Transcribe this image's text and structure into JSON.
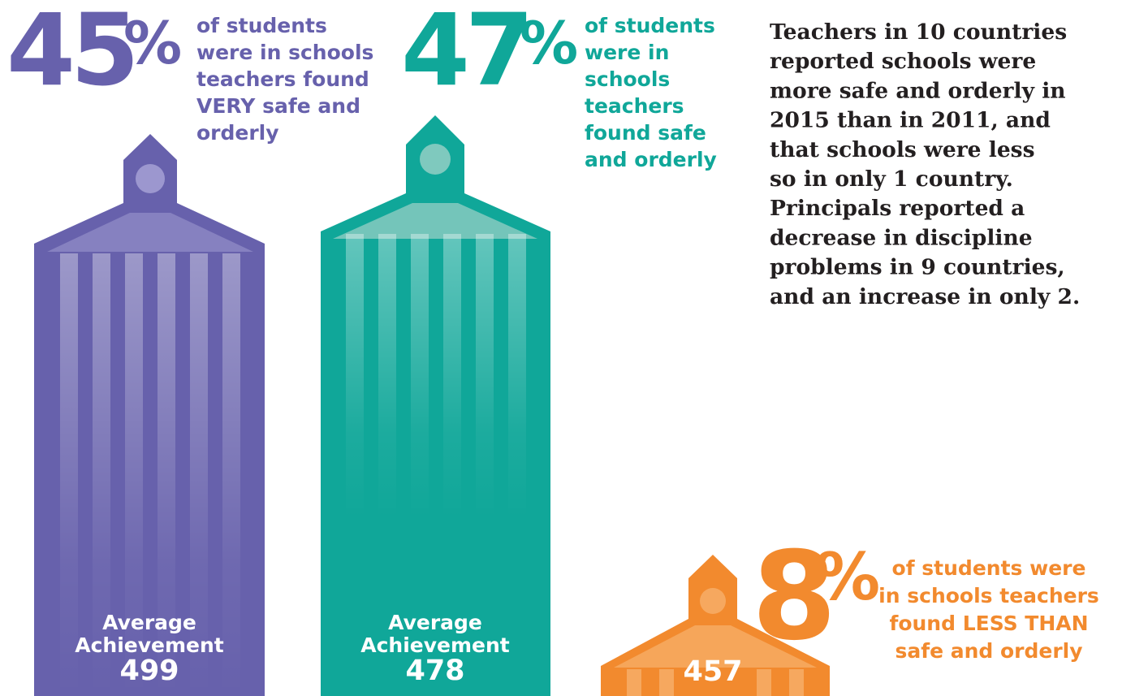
{
  "panels": [
    {
      "percent": "45",
      "percent_sign": "%",
      "caption": [
        "of students",
        "were in schools",
        "teachers found",
        "VERY safe and",
        "orderly"
      ],
      "label": [
        "Average",
        "Achievement"
      ],
      "score": "499"
    },
    {
      "percent": "47",
      "percent_sign": "%",
      "caption": [
        "of students",
        "were in",
        "schools",
        "teachers",
        "found safe",
        "and orderly"
      ],
      "label": [
        "Average",
        "Achievement"
      ],
      "score": "478"
    },
    {
      "percent": "8",
      "percent_sign": "%",
      "caption": [
        "of students were",
        "in schools teachers",
        "found LESS THAN",
        "safe and orderly"
      ],
      "label": [],
      "score": "457"
    }
  ],
  "summary": [
    "Teachers in 10 countries",
    "reported schools were",
    "more safe and orderly in",
    "2015 than in 2011, and",
    "that schools were less",
    "so in only 1 country.",
    "Principals reported a",
    "decrease in discipline",
    "problems in 9 countries,",
    "and an increase in only 2."
  ]
}
